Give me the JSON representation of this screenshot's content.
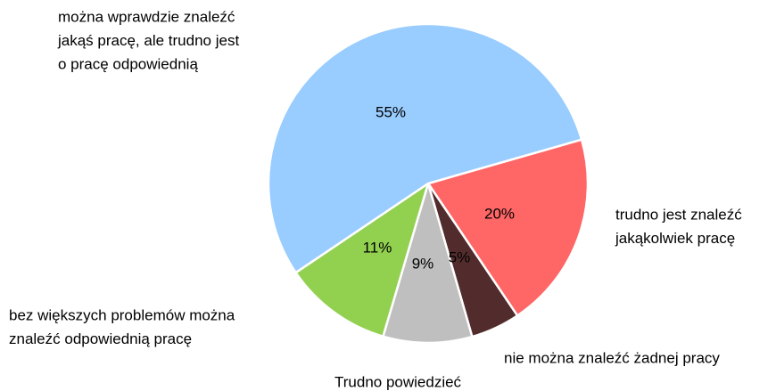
{
  "chart_data": {
    "type": "pie",
    "categories": [
      [
        "trudno jest znaleźć",
        "jakąkolwiek pracę"
      ],
      [
        "nie można znaleźć żadnej pracy"
      ],
      [
        "Trudno powiedzieć"
      ],
      [
        "bez większych problemów można",
        "znaleźć odpowiednią pracę"
      ],
      [
        "można wprawdzie znaleźć",
        "jakąś pracę, ale trudno jest",
        "o pracę odpowiednią"
      ]
    ],
    "values": [
      20,
      5,
      9,
      11,
      55
    ],
    "value_labels": [
      "20%",
      "5%",
      "9%",
      "11%",
      "55%"
    ],
    "colors": [
      "#ff6666",
      "#522c2c",
      "#bfbfbf",
      "#92d050",
      "#99ccff"
    ]
  }
}
